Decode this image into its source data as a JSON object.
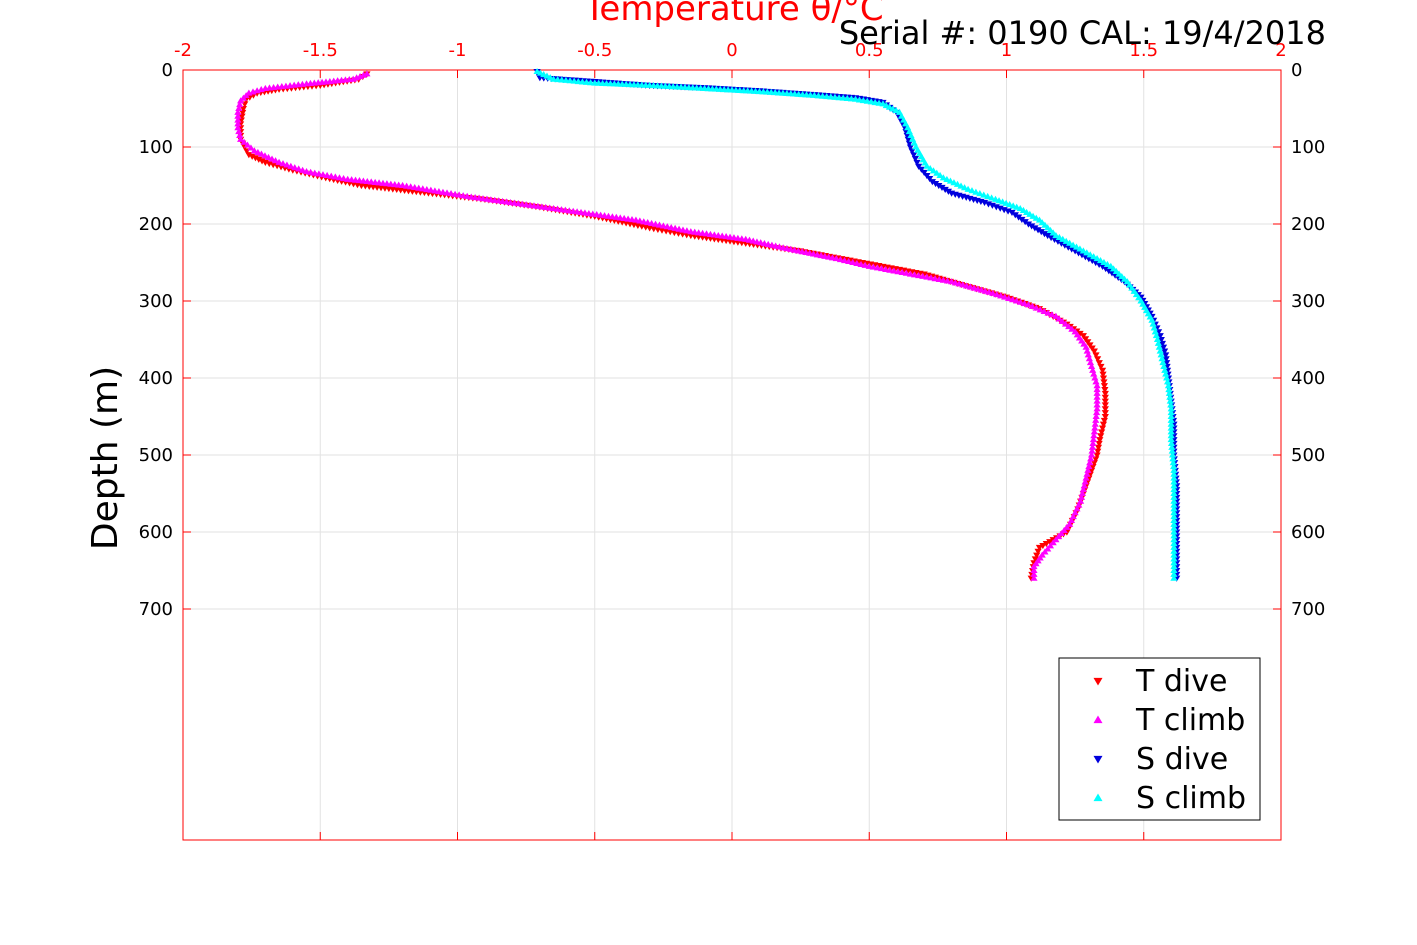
{
  "chart_data": {
    "type": "scatter",
    "title": "Temperature θ/°C",
    "subtitle": "Serial #: 0190  CAL: 19/4/2018",
    "xlabel": "Temperature θ/°C",
    "ylabel": "Depth (m)",
    "xlim": [
      -2,
      2
    ],
    "ylim": [
      0,
      1000
    ],
    "y_reversed": true,
    "x_ticks": [
      "-2",
      "-1.5",
      "-1",
      "-0.5",
      "0",
      "0.5",
      "1",
      "1.5",
      "2"
    ],
    "y_ticks": [
      "0",
      "100",
      "200",
      "300",
      "400",
      "500",
      "600",
      "700"
    ],
    "grid": true,
    "legend_position": "bottom-right",
    "colors": {
      "axis_top": "#ff0000",
      "t_dive": "#ff0000",
      "t_climb": "#ff00ff",
      "s_dive": "#0000dd",
      "s_climb": "#00ffff"
    },
    "series": [
      {
        "name": "T dive",
        "marker": "triangle-down",
        "color": "#ff0000",
        "points": [
          [
            -1.33,
            5
          ],
          [
            -1.36,
            12
          ],
          [
            -1.5,
            20
          ],
          [
            -1.65,
            25
          ],
          [
            -1.73,
            30
          ],
          [
            -1.77,
            38
          ],
          [
            -1.78,
            50
          ],
          [
            -1.79,
            70
          ],
          [
            -1.79,
            90
          ],
          [
            -1.76,
            110
          ],
          [
            -1.7,
            120
          ],
          [
            -1.6,
            130
          ],
          [
            -1.48,
            140
          ],
          [
            -1.35,
            150
          ],
          [
            -1.15,
            158
          ],
          [
            -0.9,
            168
          ],
          [
            -0.7,
            178
          ],
          [
            -0.5,
            190
          ],
          [
            -0.3,
            205
          ],
          [
            -0.15,
            215
          ],
          [
            0.05,
            225
          ],
          [
            0.25,
            235
          ],
          [
            0.4,
            245
          ],
          [
            0.55,
            255
          ],
          [
            0.7,
            265
          ],
          [
            0.85,
            280
          ],
          [
            1.0,
            295
          ],
          [
            1.12,
            310
          ],
          [
            1.22,
            330
          ],
          [
            1.28,
            345
          ],
          [
            1.32,
            365
          ],
          [
            1.35,
            390
          ],
          [
            1.36,
            420
          ],
          [
            1.36,
            450
          ],
          [
            1.34,
            480
          ],
          [
            1.33,
            500
          ],
          [
            1.3,
            530
          ],
          [
            1.26,
            570
          ],
          [
            1.22,
            600
          ],
          [
            1.12,
            620
          ],
          [
            1.1,
            640
          ],
          [
            1.09,
            660
          ]
        ]
      },
      {
        "name": "T climb",
        "marker": "triangle-up",
        "color": "#ff00ff",
        "points": [
          [
            -1.33,
            5
          ],
          [
            -1.38,
            12
          ],
          [
            -1.55,
            18
          ],
          [
            -1.7,
            24
          ],
          [
            -1.76,
            30
          ],
          [
            -1.79,
            40
          ],
          [
            -1.8,
            55
          ],
          [
            -1.8,
            75
          ],
          [
            -1.79,
            90
          ],
          [
            -1.74,
            105
          ],
          [
            -1.65,
            120
          ],
          [
            -1.55,
            132
          ],
          [
            -1.4,
            142
          ],
          [
            -1.2,
            150
          ],
          [
            -0.95,
            165
          ],
          [
            -0.75,
            175
          ],
          [
            -0.55,
            185
          ],
          [
            -0.35,
            195
          ],
          [
            -0.15,
            210
          ],
          [
            0.05,
            220
          ],
          [
            0.2,
            232
          ],
          [
            0.38,
            245
          ],
          [
            0.5,
            255
          ],
          [
            0.65,
            265
          ],
          [
            0.8,
            275
          ],
          [
            0.95,
            290
          ],
          [
            1.08,
            305
          ],
          [
            1.18,
            320
          ],
          [
            1.25,
            340
          ],
          [
            1.29,
            360
          ],
          [
            1.31,
            385
          ],
          [
            1.33,
            410
          ],
          [
            1.33,
            440
          ],
          [
            1.32,
            470
          ],
          [
            1.31,
            500
          ],
          [
            1.29,
            530
          ],
          [
            1.27,
            560
          ],
          [
            1.23,
            590
          ],
          [
            1.18,
            610
          ],
          [
            1.13,
            630
          ],
          [
            1.1,
            645
          ],
          [
            1.1,
            660
          ]
        ]
      },
      {
        "name": "S dive",
        "marker": "triangle-down",
        "color": "#0000dd",
        "points": [
          [
            -0.71,
            2
          ],
          [
            -0.7,
            10
          ],
          [
            -0.5,
            15
          ],
          [
            -0.3,
            20
          ],
          [
            -0.1,
            23
          ],
          [
            0.1,
            27
          ],
          [
            0.3,
            32
          ],
          [
            0.45,
            36
          ],
          [
            0.55,
            42
          ],
          [
            0.6,
            55
          ],
          [
            0.63,
            75
          ],
          [
            0.65,
            100
          ],
          [
            0.68,
            125
          ],
          [
            0.73,
            145
          ],
          [
            0.8,
            160
          ],
          [
            0.92,
            172
          ],
          [
            1.02,
            185
          ],
          [
            1.08,
            200
          ],
          [
            1.15,
            215
          ],
          [
            1.25,
            235
          ],
          [
            1.35,
            255
          ],
          [
            1.43,
            275
          ],
          [
            1.49,
            295
          ],
          [
            1.53,
            320
          ],
          [
            1.56,
            345
          ],
          [
            1.58,
            370
          ],
          [
            1.59,
            400
          ],
          [
            1.6,
            430
          ],
          [
            1.61,
            460
          ],
          [
            1.61,
            500
          ],
          [
            1.62,
            540
          ],
          [
            1.62,
            580
          ],
          [
            1.62,
            620
          ],
          [
            1.62,
            660
          ]
        ]
      },
      {
        "name": "S climb",
        "marker": "triangle-up",
        "color": "#00ffff",
        "points": [
          [
            -0.71,
            2
          ],
          [
            -0.65,
            12
          ],
          [
            -0.5,
            17
          ],
          [
            -0.3,
            20
          ],
          [
            -0.1,
            24
          ],
          [
            0.1,
            28
          ],
          [
            0.3,
            33
          ],
          [
            0.45,
            38
          ],
          [
            0.55,
            44
          ],
          [
            0.61,
            55
          ],
          [
            0.64,
            75
          ],
          [
            0.67,
            100
          ],
          [
            0.71,
            125
          ],
          [
            0.77,
            140
          ],
          [
            0.86,
            155
          ],
          [
            0.96,
            168
          ],
          [
            1.05,
            180
          ],
          [
            1.12,
            195
          ],
          [
            1.18,
            215
          ],
          [
            1.28,
            235
          ],
          [
            1.38,
            255
          ],
          [
            1.44,
            275
          ],
          [
            1.49,
            300
          ],
          [
            1.53,
            325
          ],
          [
            1.55,
            350
          ],
          [
            1.57,
            380
          ],
          [
            1.59,
            410
          ],
          [
            1.6,
            440
          ],
          [
            1.6,
            480
          ],
          [
            1.61,
            520
          ],
          [
            1.61,
            560
          ],
          [
            1.61,
            600
          ],
          [
            1.61,
            640
          ],
          [
            1.61,
            660
          ]
        ]
      }
    ]
  }
}
